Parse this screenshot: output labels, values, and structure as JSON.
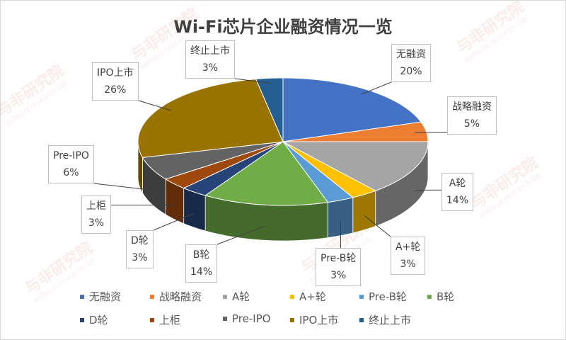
{
  "watermark": {
    "text": "与非研究院",
    "subtext": "eefocus research lab"
  },
  "chart_data": {
    "type": "pie",
    "style": "3d",
    "title": "Wi-Fi芯片企业融资情况一览",
    "legend_position": "bottom",
    "categories": [
      "无融资",
      "战略融资",
      "A轮",
      "A+轮",
      "Pre-B轮",
      "B轮",
      "D轮",
      "上柜",
      "Pre-IPO",
      "IPO上市",
      "终止上市"
    ],
    "values": [
      20,
      5,
      14,
      3,
      3,
      14,
      3,
      3,
      6,
      26,
      3
    ],
    "data_labels": [
      "20%",
      "5%",
      "14%",
      "3%",
      "3%",
      "14%",
      "3%",
      "3%",
      "6%",
      "26%",
      "3%"
    ],
    "colors": [
      "#4472C4",
      "#ED7D31",
      "#A5A5A5",
      "#FFC000",
      "#5B9BD5",
      "#70AD47",
      "#264478",
      "#9E480E",
      "#636363",
      "#997300",
      "#255E91"
    ]
  }
}
